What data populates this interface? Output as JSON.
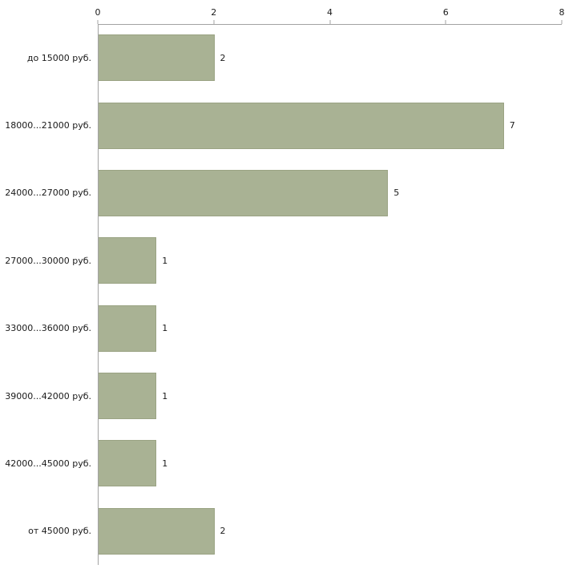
{
  "chart_data": {
    "type": "bar",
    "orientation": "horizontal",
    "title": "",
    "xlabel": "",
    "ylabel": "",
    "categories": [
      "до 15000 руб.",
      "18000...21000 руб.",
      "24000...27000 руб.",
      "27000...30000 руб.",
      "33000...36000 руб.",
      "39000...42000 руб.",
      "42000...45000 руб.",
      "от 45000 руб."
    ],
    "values": [
      2,
      7,
      5,
      1,
      1,
      1,
      1,
      2
    ],
    "value_labels": [
      "2",
      "7",
      "5",
      "1",
      "1",
      "1",
      "1",
      "2"
    ],
    "x_axis": {
      "position": "top",
      "min": 0,
      "max": 8,
      "ticks": [
        0,
        2,
        4,
        6,
        8
      ]
    },
    "legend": "none",
    "grid": "off",
    "colors": {
      "bar_fill": "#a9b294",
      "bar_border": "#9aa383",
      "axis_line": "#a3a3a3",
      "text": "#1a1a1a",
      "background": "#ffffff"
    }
  }
}
